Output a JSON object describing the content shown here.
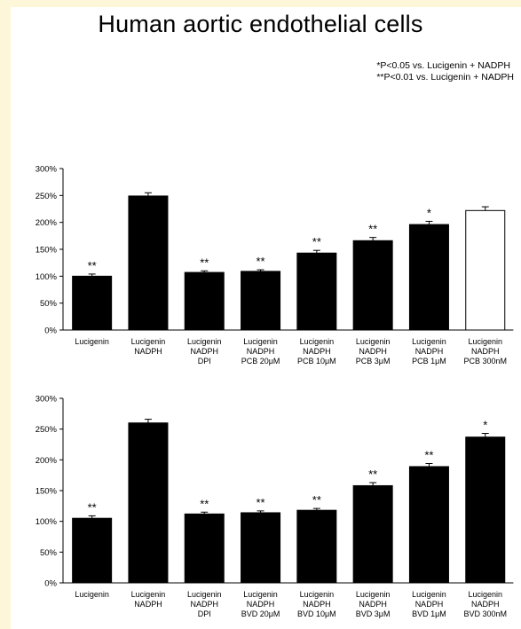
{
  "title": "Human aortic endothelial cells",
  "notes": [
    "*P<0.05 vs. Lucigenin + NADPH",
    "**P<0.01 vs. Lucigenin + NADPH"
  ],
  "colors": {
    "filled": "#000000",
    "open": "#ffffff"
  },
  "chart_data": [
    {
      "type": "bar",
      "ylim": [
        0,
        300
      ],
      "yticks": [
        0,
        50,
        100,
        150,
        200,
        250,
        300
      ],
      "ytick_labels": [
        "0%",
        "50%",
        "100%",
        "150%",
        "200%",
        "250%",
        "300%"
      ],
      "categories": [
        [
          "Lucigenin"
        ],
        [
          "Lucigenin",
          "NADPH"
        ],
        [
          "Lucigenin",
          "NADPH",
          "DPI"
        ],
        [
          "Lucigenin",
          "NADPH",
          "PCB 20μM"
        ],
        [
          "Lucigenin",
          "NADPH",
          "PCB 10μM"
        ],
        [
          "Lucigenin",
          "NADPH",
          "PCB 3μM"
        ],
        [
          "Lucigenin",
          "NADPH",
          "PCB 1μM"
        ],
        [
          "Lucigenin",
          "NADPH",
          "PCB 300nM"
        ]
      ],
      "values": [
        100,
        249,
        107,
        109,
        143,
        166,
        196,
        222
      ],
      "errors": [
        4,
        6,
        3,
        3,
        5,
        6,
        6,
        7
      ],
      "significance": [
        "**",
        "",
        "**",
        "**",
        "**",
        "**",
        "*",
        ""
      ],
      "fill": [
        "filled",
        "filled",
        "filled",
        "filled",
        "filled",
        "filled",
        "filled",
        "open"
      ]
    },
    {
      "type": "bar",
      "ylim": [
        0,
        300
      ],
      "yticks": [
        0,
        50,
        100,
        150,
        200,
        250,
        300
      ],
      "ytick_labels": [
        "0%",
        "50%",
        "100%",
        "150%",
        "200%",
        "250%",
        "300%"
      ],
      "categories": [
        [
          "Lucigenin"
        ],
        [
          "Lucigenin",
          "NADPH"
        ],
        [
          "Lucigenin",
          "NADPH",
          "DPI"
        ],
        [
          "Lucigenin",
          "NADPH",
          "BVD 20μM"
        ],
        [
          "Lucigenin",
          "NADPH",
          "BVD 10μM"
        ],
        [
          "Lucigenin",
          "NADPH",
          "BVD 3μM"
        ],
        [
          "Lucigenin",
          "NADPH",
          "BVD 1μM"
        ],
        [
          "Lucigenin",
          "NADPH",
          "BVD 300nM"
        ]
      ],
      "values": [
        105,
        260,
        112,
        114,
        118,
        158,
        189,
        237
      ],
      "errors": [
        4,
        6,
        3,
        3,
        3,
        5,
        5,
        6
      ],
      "significance": [
        "**",
        "",
        "**",
        "**",
        "**",
        "**",
        "**",
        "*"
      ],
      "fill": [
        "filled",
        "filled",
        "filled",
        "filled",
        "filled",
        "filled",
        "filled",
        "filled"
      ]
    }
  ]
}
